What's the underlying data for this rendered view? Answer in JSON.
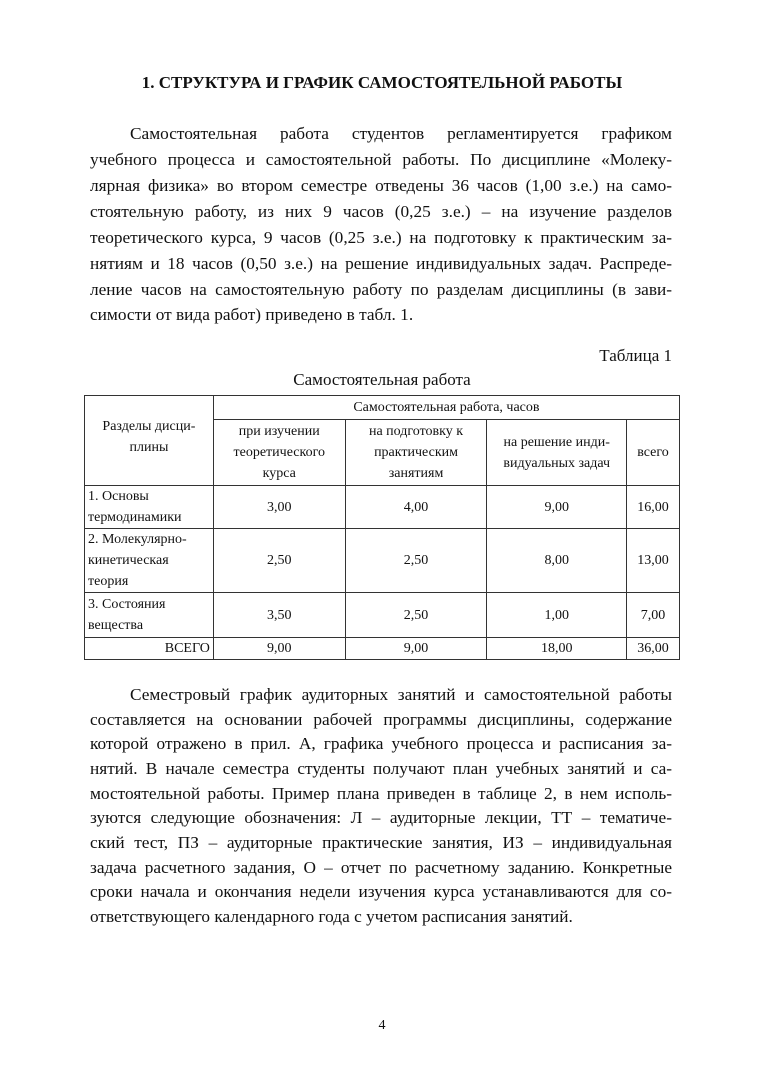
{
  "title": "1. СТРУКТУРА И ГРАФИК САМОСТОЯТЕЛЬНОЙ РАБОТЫ",
  "paragraph1": [
    "Самостоятельная работа студентов регламентируется графиком",
    "учебного процесса и самостоятельной работы. По дисциплине «Молеку-",
    "лярная физика» во втором семестре отведены 36 часов (1,00 з.е.) на само-",
    "стоятельную работу, из них 9 часов (0,25 з.е.) – на изучение разделов",
    "теоретического курса, 9 часов (0,25 з.е.) на подготовку к практическим за-",
    "нятиям и 18 часов (0,50 з.е.) на решение индивидуальных задач. Распреде-",
    "ление часов на самостоятельную работу по разделам дисциплины (в зави-",
    "симости от вида работ) приведено в табл. 1."
  ],
  "table": {
    "number": "Таблица 1",
    "caption": "Самостоятельная работа",
    "header_sections": "Разделы дисци-плины",
    "header_group": "Самостоятельная работа, часов",
    "columns": [
      "при изучении теоретического курса",
      "на подготовку к практическим занятиям",
      "на решение инди-видуальных задач",
      "всего"
    ],
    "rows": [
      {
        "section": "1. Основы термодинамики",
        "values": [
          "3,00",
          "4,00",
          "9,00",
          "16,00"
        ]
      },
      {
        "section": "2. Молекулярно-кинетическая теория",
        "values": [
          "2,50",
          "2,50",
          "8,00",
          "13,00"
        ]
      },
      {
        "section": "3. Состояния вещества",
        "values": [
          "3,50",
          "2,50",
          "1,00",
          "7,00"
        ]
      }
    ],
    "total": {
      "label": "ВСЕГО",
      "values": [
        "9,00",
        "9,00",
        "18,00",
        "36,00"
      ]
    }
  },
  "paragraph2": [
    "Семестровый график аудиторных занятий и самостоятельной работы",
    "составляется на основании рабочей программы дисциплины, содержание",
    "которой отражено в прил. А, графика учебного процесса и расписания за-",
    "нятий. В начале семестра студенты получают план учебных занятий и са-",
    "мостоятельной работы. Пример плана приведен в таблице 2, в нем исполь-",
    "зуются следующие обозначения: Л – аудиторные лекции, ТТ – тематиче-",
    "ский тест, ПЗ – аудиторные практические занятия, ИЗ – индивидуальная",
    "задача расчетного задания, О – отчет по расчетному заданию. Конкретные",
    "сроки начала и окончания недели изучения курса устанавливаются для со-",
    "ответствующего календарного года с учетом расписания занятий."
  ],
  "page_number": "4"
}
